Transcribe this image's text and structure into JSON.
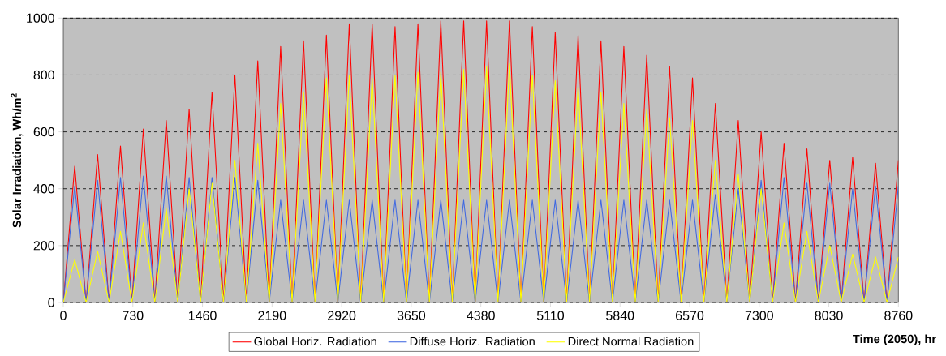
{
  "chart_data": {
    "type": "line",
    "xlabel": "Time (2050), hr",
    "ylabel": "Solar Irradiation, Wh/m$^{2}$",
    "x": [
      0,
      120,
      240,
      360,
      480,
      600,
      720,
      840,
      960,
      1080,
      1200,
      1320,
      1440,
      1560,
      1680,
      1800,
      1920,
      2040,
      2160,
      2280,
      2400,
      2520,
      2640,
      2760,
      2880,
      3000,
      3120,
      3240,
      3360,
      3480,
      3600,
      3720,
      3840,
      3960,
      4080,
      4200,
      4320,
      4440,
      4560,
      4680,
      4800,
      4920,
      5040,
      5160,
      5280,
      5400,
      5520,
      5640,
      5760,
      5880,
      6000,
      6120,
      6240,
      6360,
      6480,
      6600,
      6720,
      6840,
      6960,
      7080,
      7200,
      7320,
      7440,
      7560,
      7680,
      7800,
      7920,
      8040,
      8160,
      8280,
      8400,
      8520,
      8640,
      8760
    ],
    "xlim": [
      0,
      8760
    ],
    "xticks": [
      0,
      730,
      1460,
      2190,
      2920,
      3650,
      4380,
      5110,
      5840,
      6570,
      7300,
      8030,
      8760
    ],
    "ylim": [
      0,
      1000
    ],
    "yticks": [
      0,
      200,
      400,
      600,
      800,
      1000
    ],
    "grid": "y",
    "legend": "bottom",
    "series": [
      {
        "name": "Global Horiz. Radiation",
        "color": "#ff0000",
        "values": [
          0,
          480,
          0,
          520,
          0,
          550,
          0,
          610,
          0,
          640,
          0,
          680,
          0,
          740,
          0,
          800,
          0,
          850,
          0,
          900,
          0,
          920,
          0,
          940,
          0,
          980,
          0,
          980,
          0,
          970,
          0,
          980,
          0,
          990,
          0,
          990,
          0,
          990,
          0,
          990,
          0,
          970,
          0,
          950,
          0,
          940,
          0,
          920,
          0,
          900,
          0,
          870,
          0,
          830,
          0,
          790,
          0,
          700,
          0,
          640,
          0,
          600,
          0,
          560,
          0,
          540,
          0,
          500,
          0,
          510,
          0,
          490,
          0,
          500
        ]
      },
      {
        "name": "Diffuse Horiz. Radiation",
        "color": "#4169e1",
        "values": [
          0,
          410,
          0,
          430,
          0,
          440,
          0,
          445,
          0,
          445,
          0,
          440,
          0,
          440,
          0,
          440,
          0,
          430,
          0,
          360,
          0,
          360,
          0,
          360,
          0,
          360,
          0,
          360,
          0,
          360,
          0,
          360,
          0,
          360,
          0,
          360,
          0,
          360,
          0,
          360,
          0,
          360,
          0,
          360,
          0,
          360,
          0,
          360,
          0,
          360,
          0,
          360,
          0,
          360,
          0,
          360,
          0,
          380,
          0,
          400,
          0,
          430,
          0,
          440,
          0,
          420,
          0,
          420,
          0,
          400,
          0,
          410,
          0,
          410
        ]
      },
      {
        "name": "Direct Normal Radiation",
        "color": "#ffff00",
        "values": [
          0,
          150,
          0,
          180,
          0,
          250,
          0,
          280,
          0,
          330,
          0,
          400,
          0,
          420,
          0,
          500,
          0,
          560,
          0,
          700,
          0,
          740,
          0,
          790,
          0,
          800,
          0,
          790,
          0,
          800,
          0,
          810,
          0,
          810,
          0,
          820,
          0,
          830,
          0,
          840,
          0,
          800,
          0,
          780,
          0,
          760,
          0,
          740,
          0,
          700,
          0,
          680,
          0,
          650,
          0,
          640,
          0,
          500,
          0,
          450,
          0,
          400,
          0,
          280,
          0,
          250,
          0,
          200,
          0,
          170,
          0,
          160,
          0,
          160
        ]
      }
    ]
  }
}
